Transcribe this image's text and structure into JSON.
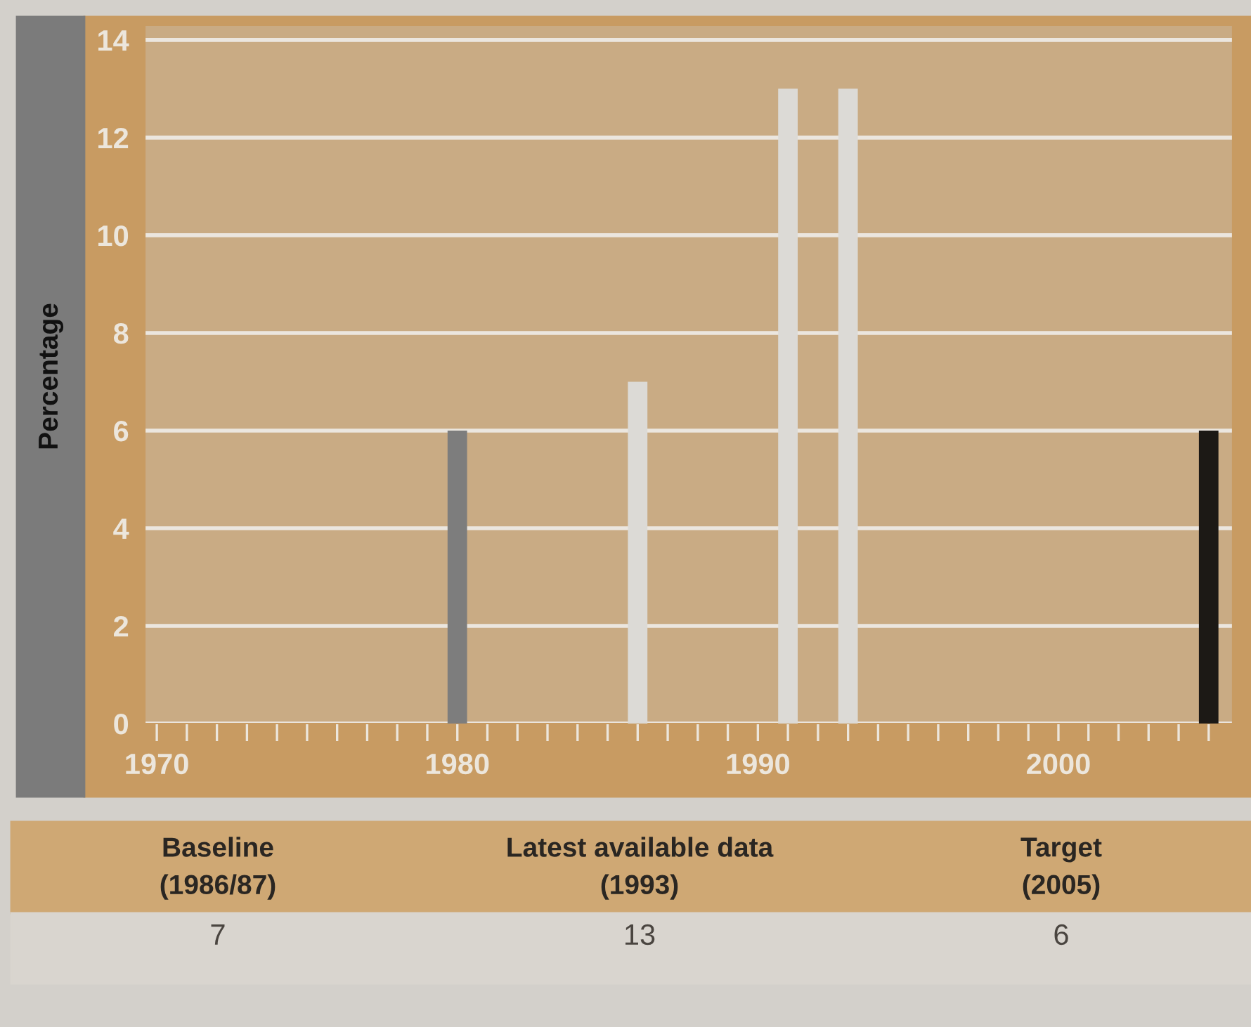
{
  "chart_data": {
    "type": "bar",
    "ylabel": "Percentage",
    "x": [
      1980,
      1986,
      1991,
      1993,
      2005
    ],
    "values": [
      6,
      7,
      13,
      13,
      6
    ],
    "colors": [
      "#7d7d7d",
      "#dcdad6",
      "#dcdad6",
      "#dcdad6",
      "#1c1915"
    ],
    "xlim": [
      1969.6,
      2005.8
    ],
    "ylim": [
      0,
      14.3
    ],
    "xticks": [
      1970,
      {
        "value": 1971,
        "label": null
      },
      {
        "value": 1972,
        "label": null
      },
      {
        "value": 1973,
        "label": null
      },
      {
        "value": 1974,
        "label": null
      },
      {
        "value": 1975,
        "label": null
      },
      {
        "value": 1976,
        "label": null
      },
      {
        "value": 1977,
        "label": null
      },
      {
        "value": 1978,
        "label": null
      },
      {
        "value": 1979,
        "label": null
      },
      1980,
      {
        "value": 1981,
        "label": null
      },
      {
        "value": 1982,
        "label": null
      },
      {
        "value": 1983,
        "label": null
      },
      {
        "value": 1984,
        "label": null
      },
      {
        "value": 1985,
        "label": null
      },
      {
        "value": 1986,
        "label": null
      },
      {
        "value": 1987,
        "label": null
      },
      {
        "value": 1988,
        "label": null
      },
      {
        "value": 1989,
        "label": null
      },
      1990,
      {
        "value": 1991,
        "label": null
      },
      {
        "value": 1992,
        "label": null
      },
      {
        "value": 1993,
        "label": null
      },
      {
        "value": 1994,
        "label": null
      },
      {
        "value": 1995,
        "label": null
      },
      {
        "value": 1996,
        "label": null
      },
      {
        "value": 1997,
        "label": null
      },
      {
        "value": 1998,
        "label": null
      },
      {
        "value": 1999,
        "label": null
      },
      2000,
      {
        "value": 2001,
        "label": null
      },
      {
        "value": 2002,
        "label": null
      },
      {
        "value": 2003,
        "label": null
      },
      {
        "value": 2004,
        "label": null
      },
      {
        "value": 2005,
        "label": null
      }
    ],
    "yticks": [
      0,
      2,
      4,
      6,
      8,
      10,
      12,
      14
    ],
    "grid": "y",
    "annotations": [
      "Baseline\n(1986/87)",
      "Latest available data\n(1993)",
      "Target\n(2005)",
      "7",
      "13",
      "6"
    ]
  }
}
